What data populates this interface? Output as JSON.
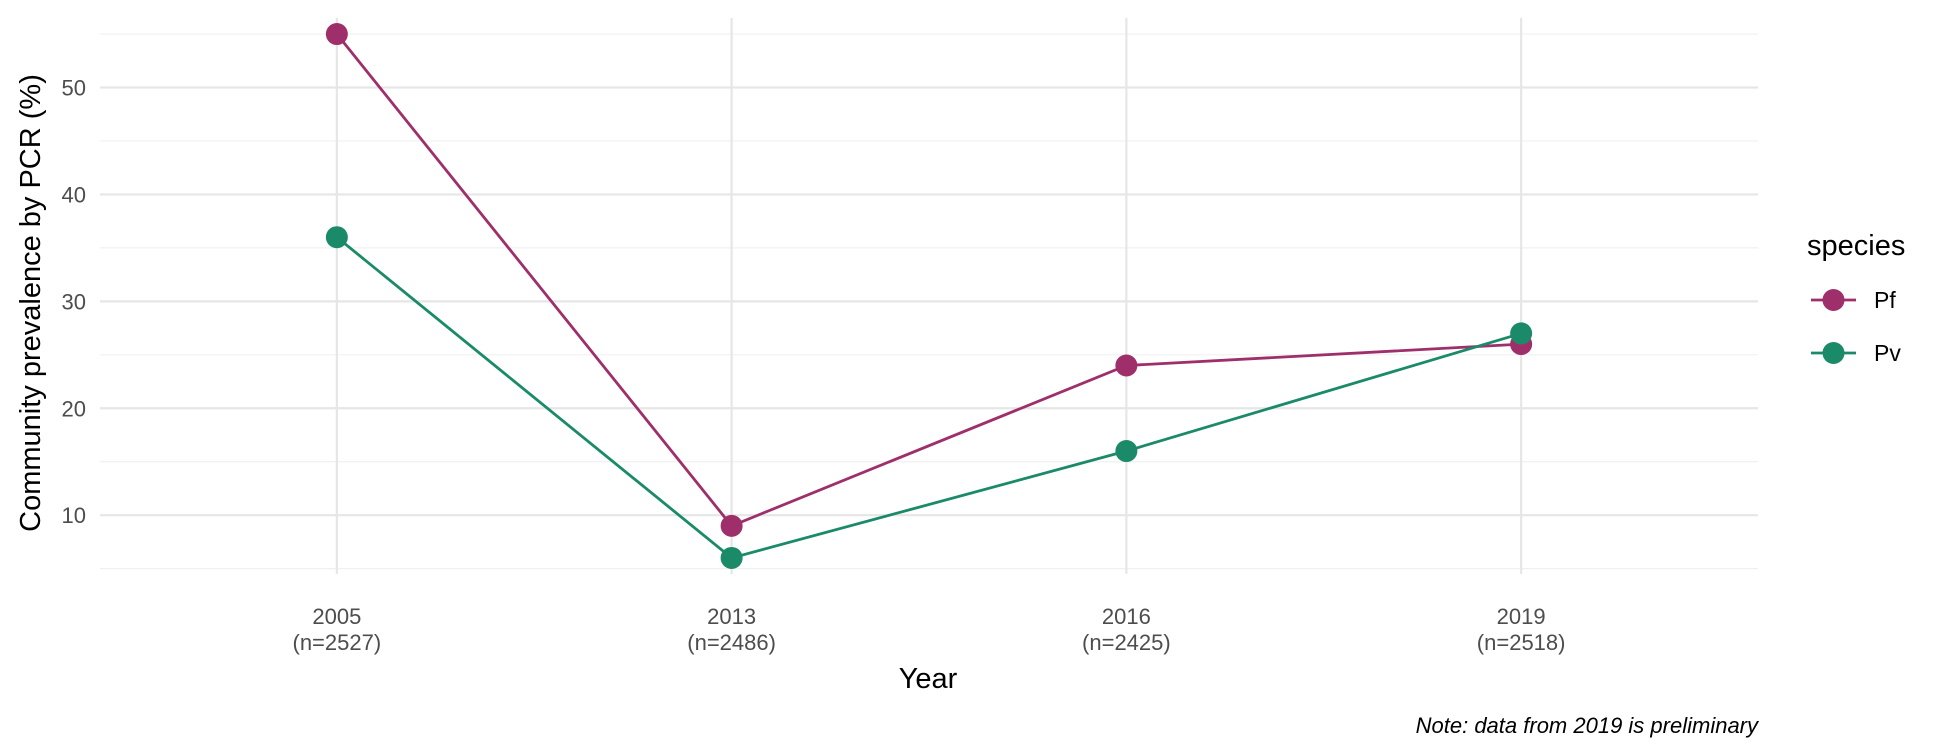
{
  "chart_data": {
    "type": "line",
    "categories": [
      "2005\n(n=2527)",
      "2013\n(n=2486)",
      "2016\n(n=2425)",
      "2019\n(n=2518)"
    ],
    "x_tick_labels": [
      {
        "year": "2005",
        "n": "(n=2527)"
      },
      {
        "year": "2013",
        "n": "(n=2486)"
      },
      {
        "year": "2016",
        "n": "(n=2425)"
      },
      {
        "year": "2019",
        "n": "(n=2518)"
      }
    ],
    "series": [
      {
        "name": "Pf",
        "color": "#9e2f6b",
        "values": [
          55,
          9,
          24,
          26
        ]
      },
      {
        "name": "Pv",
        "color": "#1a8a68",
        "values": [
          36,
          6,
          16,
          27
        ]
      }
    ],
    "xlabel": "Year",
    "ylabel": "Community prevalence by PCR (%)",
    "ylim": [
      4.5,
      56.5
    ],
    "y_ticks": [
      10,
      20,
      30,
      40,
      50
    ],
    "y_minor_ticks": [
      5,
      15,
      25,
      35,
      45,
      55
    ],
    "legend_title": "species",
    "legend_position": "right",
    "grid": true,
    "caption": "Note: data from 2019 is preliminary"
  }
}
